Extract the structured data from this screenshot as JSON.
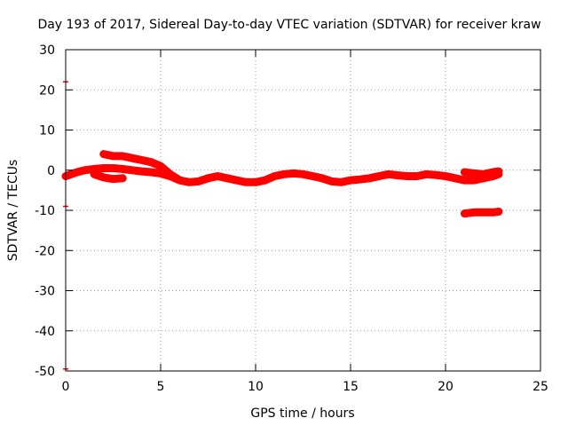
{
  "chart_data": {
    "type": "scatter",
    "title": "Day 193 of 2017, Sidereal Day-to-day VTEC variation (SDTVAR) for receiver kraw",
    "xlabel": "GPS time / hours",
    "ylabel": "SDTVAR / TECUs",
    "xlim": [
      0,
      25
    ],
    "ylim": [
      -50,
      30
    ],
    "xticks": [
      0,
      5,
      10,
      15,
      20,
      25
    ],
    "yticks": [
      -50,
      -40,
      -30,
      -20,
      -10,
      0,
      10,
      20,
      30
    ],
    "xtick_labels": [
      "0",
      "5",
      "10",
      "15",
      "20",
      "25"
    ],
    "ytick_labels": [
      "-50",
      "-40",
      "-30",
      "-20",
      "-10",
      "0",
      "10",
      "20",
      "30"
    ],
    "grid": true,
    "legend": "none",
    "colors": {
      "series": "#ff0000",
      "axis": "#000000",
      "grid": "#a0a0a0"
    },
    "series": [
      {
        "name": "main-track",
        "x": [
          0.0,
          0.3,
          0.6,
          1.0,
          1.5,
          2.0,
          2.5,
          3.0,
          3.5,
          4.0,
          4.5,
          5.0,
          5.5,
          6.0,
          6.5,
          7.0,
          7.5,
          8.0,
          8.5,
          9.0,
          9.5,
          10.0,
          10.5,
          11.0,
          11.5,
          12.0,
          12.5,
          13.0,
          13.5,
          14.0,
          14.5,
          15.0,
          15.5,
          16.0,
          16.5,
          17.0,
          17.5,
          18.0,
          18.5,
          19.0,
          19.5,
          20.0,
          20.5,
          21.0,
          21.5,
          22.0,
          22.5,
          22.8
        ],
        "y": [
          -1.5,
          -1.0,
          -0.5,
          0.0,
          0.3,
          0.5,
          0.5,
          0.3,
          0.0,
          -0.3,
          -0.5,
          -0.8,
          -1.5,
          -2.5,
          -3.0,
          -2.8,
          -2.0,
          -1.5,
          -2.0,
          -2.5,
          -3.0,
          -3.0,
          -2.5,
          -1.5,
          -1.0,
          -0.8,
          -1.0,
          -1.5,
          -2.0,
          -2.8,
          -3.0,
          -2.5,
          -2.3,
          -2.0,
          -1.5,
          -1.0,
          -1.3,
          -1.5,
          -1.5,
          -1.0,
          -1.2,
          -1.5,
          -2.0,
          -2.5,
          -2.5,
          -2.0,
          -1.5,
          -1.0
        ]
      },
      {
        "name": "upper-track",
        "x": [
          2.0,
          2.5,
          3.0,
          3.5,
          4.0,
          4.5,
          5.0,
          5.5,
          6.0
        ],
        "y": [
          4.0,
          3.5,
          3.5,
          3.0,
          2.5,
          2.0,
          1.0,
          -1.0,
          -2.5
        ]
      },
      {
        "name": "early-dip-track",
        "x": [
          1.5,
          2.0,
          2.5,
          3.0
        ],
        "y": [
          -1.0,
          -1.8,
          -2.2,
          -2.0
        ]
      },
      {
        "name": "late-negative-track",
        "x": [
          21.0,
          21.5,
          22.0,
          22.5,
          22.8
        ],
        "y": [
          -10.8,
          -10.5,
          -10.5,
          -10.5,
          -10.3
        ]
      },
      {
        "name": "late-upper-track",
        "x": [
          21.0,
          21.5,
          22.0,
          22.5,
          22.8
        ],
        "y": [
          -0.5,
          -0.8,
          -1.0,
          -0.5,
          -0.3
        ]
      }
    ],
    "outlier_points": [
      {
        "x": 0.0,
        "y": 22.0
      },
      {
        "x": 0.0,
        "y": -9.0
      },
      {
        "x": 0.0,
        "y": -49.5
      }
    ]
  }
}
